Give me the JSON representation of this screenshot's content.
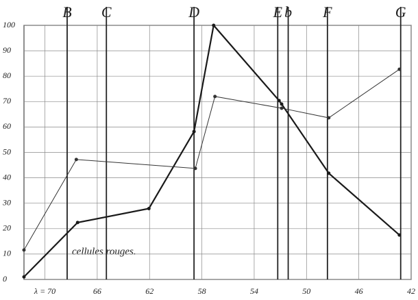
{
  "chart_data": {
    "type": "line",
    "annotation": "cellules rouges.",
    "xlim": [
      71.6,
      42
    ],
    "ylim": [
      0,
      100
    ],
    "xticks": [
      {
        "value": 70,
        "label": "λ = 70"
      },
      66,
      62,
      58,
      54,
      50,
      46,
      42
    ],
    "yticks": [
      0,
      10,
      20,
      30,
      40,
      50,
      60,
      70,
      80,
      90,
      100
    ],
    "grid": true,
    "lines": [
      {
        "label": "B",
        "x": 68.3
      },
      {
        "label": "C",
        "x": 65.3
      },
      {
        "label": "D",
        "x": 58.6
      },
      {
        "label": "E",
        "x": 52.2
      },
      {
        "label": "b",
        "x": 51.4
      },
      {
        "label": "F",
        "x": 48.4
      },
      {
        "label": "G",
        "x": 42.8
      }
    ],
    "series": [
      {
        "color": "#1a1a1a",
        "width": 2.2,
        "x": [
          71.6,
          67.5,
          62.05,
          58.6,
          57.1,
          52.1,
          51.9,
          48.3,
          42.9
        ],
        "values": [
          1,
          22.4,
          27.9,
          58.2,
          100,
          70.4,
          69,
          41.8,
          17.5
        ]
      },
      {
        "color": "#333333",
        "width": 1,
        "x": [
          71.6,
          67.6,
          58.5,
          57.0,
          51.9,
          48.3,
          42.9
        ],
        "values": [
          11.6,
          47.2,
          43.7,
          72,
          67.4,
          63.6,
          82.7
        ]
      }
    ]
  }
}
